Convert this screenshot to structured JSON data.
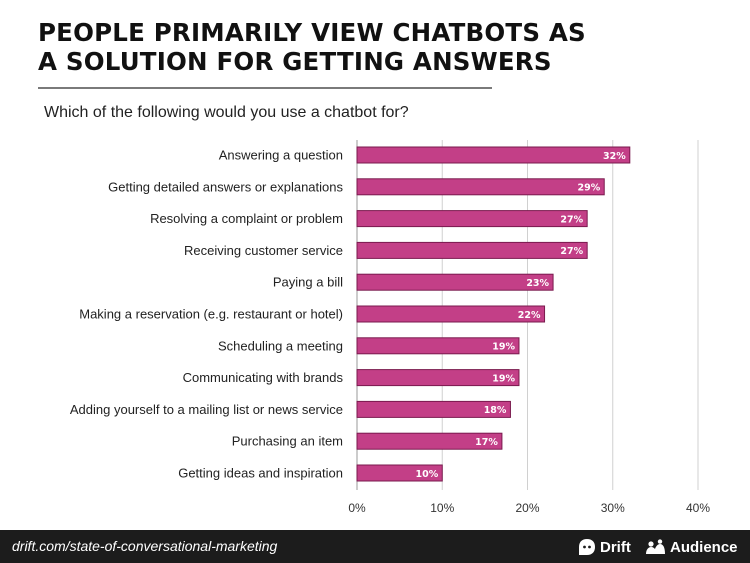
{
  "title": "PEOPLE PRIMARILY VIEW CHATBOTS AS A SOLUTION FOR GETTING ANSWERS",
  "subtitle": "Which of the following would you use a chatbot for?",
  "footer": {
    "url": "drift.com/state-of-conversational-marketing",
    "brand1": "Drift",
    "brand1_icon": "drift-logo-icon",
    "brand2": "Audience",
    "brand2_icon": "audience-logo-icon"
  },
  "chart_data": {
    "type": "bar",
    "orientation": "horizontal",
    "categories": [
      "Answering a question",
      "Getting detailed answers or explanations",
      "Resolving a complaint or problem",
      "Receiving customer service",
      "Paying a bill",
      "Making a reservation (e.g. restaurant or hotel)",
      "Scheduling a meeting",
      "Communicating with brands",
      "Adding yourself to a mailing list or news service",
      "Purchasing an item",
      "Getting ideas and inspiration"
    ],
    "values": [
      32,
      29,
      27,
      27,
      23,
      22,
      19,
      19,
      18,
      17,
      10
    ],
    "value_labels": [
      "32%",
      "29%",
      "27%",
      "27%",
      "23%",
      "22%",
      "19%",
      "19%",
      "18%",
      "17%",
      "10%"
    ],
    "xlim": [
      0,
      40
    ],
    "xticks": [
      0,
      10,
      20,
      30,
      40
    ],
    "xtick_labels": [
      "0%",
      "10%",
      "20%",
      "30%",
      "40%"
    ],
    "grid": "vertical",
    "bar_color": "#c33f87",
    "bar_edge_color": "#7a1a4e"
  }
}
